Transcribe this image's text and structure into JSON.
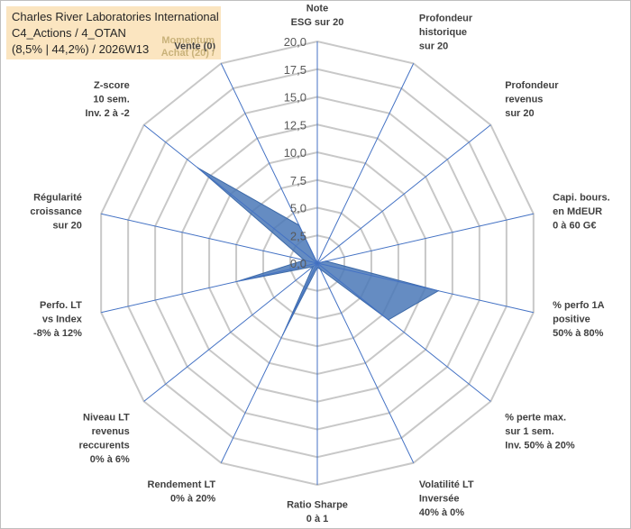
{
  "header": {
    "line1": "Charles River Laboratories International",
    "line2": "C4_Actions / 4_OTAN",
    "line3": "(8,5% | 44,2%) / 2026W13"
  },
  "chart_data": {
    "type": "radar",
    "rmin": 0,
    "rmax": 20,
    "tick_step": 2.5,
    "tick_labels": [
      "0,0",
      "2,5",
      "5,0",
      "7,5",
      "10,0",
      "12,5",
      "15,0",
      "17,5",
      "20,0"
    ],
    "grid": true,
    "colors": {
      "fill": "#4a78b7",
      "stroke": "#3d6aa8",
      "axis": "#4472c4",
      "grid": "#c8c8c8"
    },
    "axes": [
      {
        "lines": [
          "Note",
          "ESG sur 20"
        ],
        "value": 0
      },
      {
        "lines": [
          "Profondeur",
          "historique",
          "sur 20"
        ],
        "value": 0
      },
      {
        "lines": [
          "Profondeur",
          "revenus",
          "sur 20"
        ],
        "value": 0
      },
      {
        "lines": [
          "Capi. bours.",
          "en MdEUR",
          "0 à 60 G€"
        ],
        "value": 0.8
      },
      {
        "lines": [
          "% perfo 1A",
          "positive",
          "50% à 80%"
        ],
        "value": 11.2
      },
      {
        "lines": [
          "% perte max.",
          "sur 1 sem.",
          "Inv. 50% à 20%"
        ],
        "value": 8.2
      },
      {
        "lines": [
          "Volatilité LT",
          "Inversée",
          "40% à 0%"
        ],
        "value": 0.6
      },
      {
        "lines": [
          "Ratio Sharpe",
          "0 à 1"
        ],
        "value": 0.4
      },
      {
        "lines": [
          "Rendement LT",
          "0% à 20%"
        ],
        "value": 7.2
      },
      {
        "lines": [
          "Niveau LT",
          "revenus",
          "reccurents",
          "0% à 6%"
        ],
        "value": 0.5
      },
      {
        "lines": [
          "Perfo. LT",
          "vs Index",
          "-8% à 12%"
        ],
        "value": 7.4
      },
      {
        "lines": [
          "Régularité",
          "croissance",
          "sur 20"
        ],
        "value": 1.2
      },
      {
        "lines": [
          "Z-score",
          "10 sem.",
          "Inv. 2 à -2"
        ],
        "value": 13.8
      },
      {
        "lines": [
          "Vente (0)"
        ],
        "value": 3.8
      }
    ],
    "vertical_label": [
      "Momentum",
      "Achat (20) /"
    ]
  }
}
